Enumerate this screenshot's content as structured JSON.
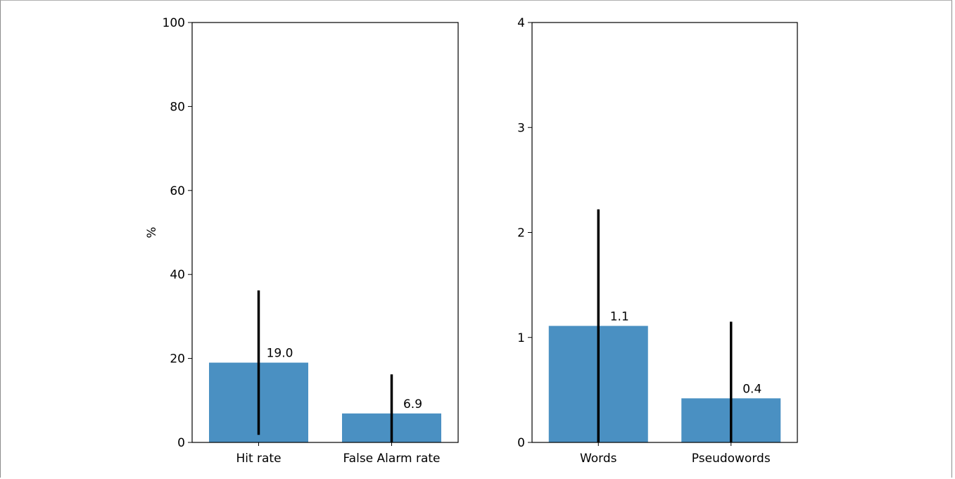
{
  "chart_data": [
    {
      "type": "bar",
      "categories": [
        "Hit rate",
        "False Alarm rate"
      ],
      "values": [
        19.0,
        6.9
      ],
      "error_bars": [
        [
          1.8,
          36.2
        ],
        [
          0.0,
          16.2
        ]
      ],
      "bar_labels": [
        "19.0",
        "6.9"
      ],
      "title": "",
      "xlabel": "",
      "ylabel": "%",
      "ylim": [
        0,
        100
      ],
      "yticks": [
        0,
        20,
        40,
        60,
        80,
        100
      ],
      "ytick_labels": [
        "0",
        "20",
        "40",
        "60",
        "80",
        "100"
      ],
      "grid": false,
      "bar_color": "#4a90c2",
      "error_color": "#000000"
    },
    {
      "type": "bar",
      "categories": [
        "Words",
        "Pseudowords"
      ],
      "values": [
        1.11,
        0.42
      ],
      "error_bars": [
        [
          0.0,
          2.22
        ],
        [
          0.0,
          1.15
        ]
      ],
      "bar_labels": [
        "1.1",
        "0.4"
      ],
      "title": "",
      "xlabel": "",
      "ylabel": "",
      "ylim": [
        0,
        4
      ],
      "yticks": [
        0,
        1,
        2,
        3,
        4
      ],
      "ytick_labels": [
        "0",
        "1",
        "2",
        "3",
        "4"
      ],
      "grid": false,
      "bar_color": "#4a90c2",
      "error_color": "#000000"
    }
  ]
}
